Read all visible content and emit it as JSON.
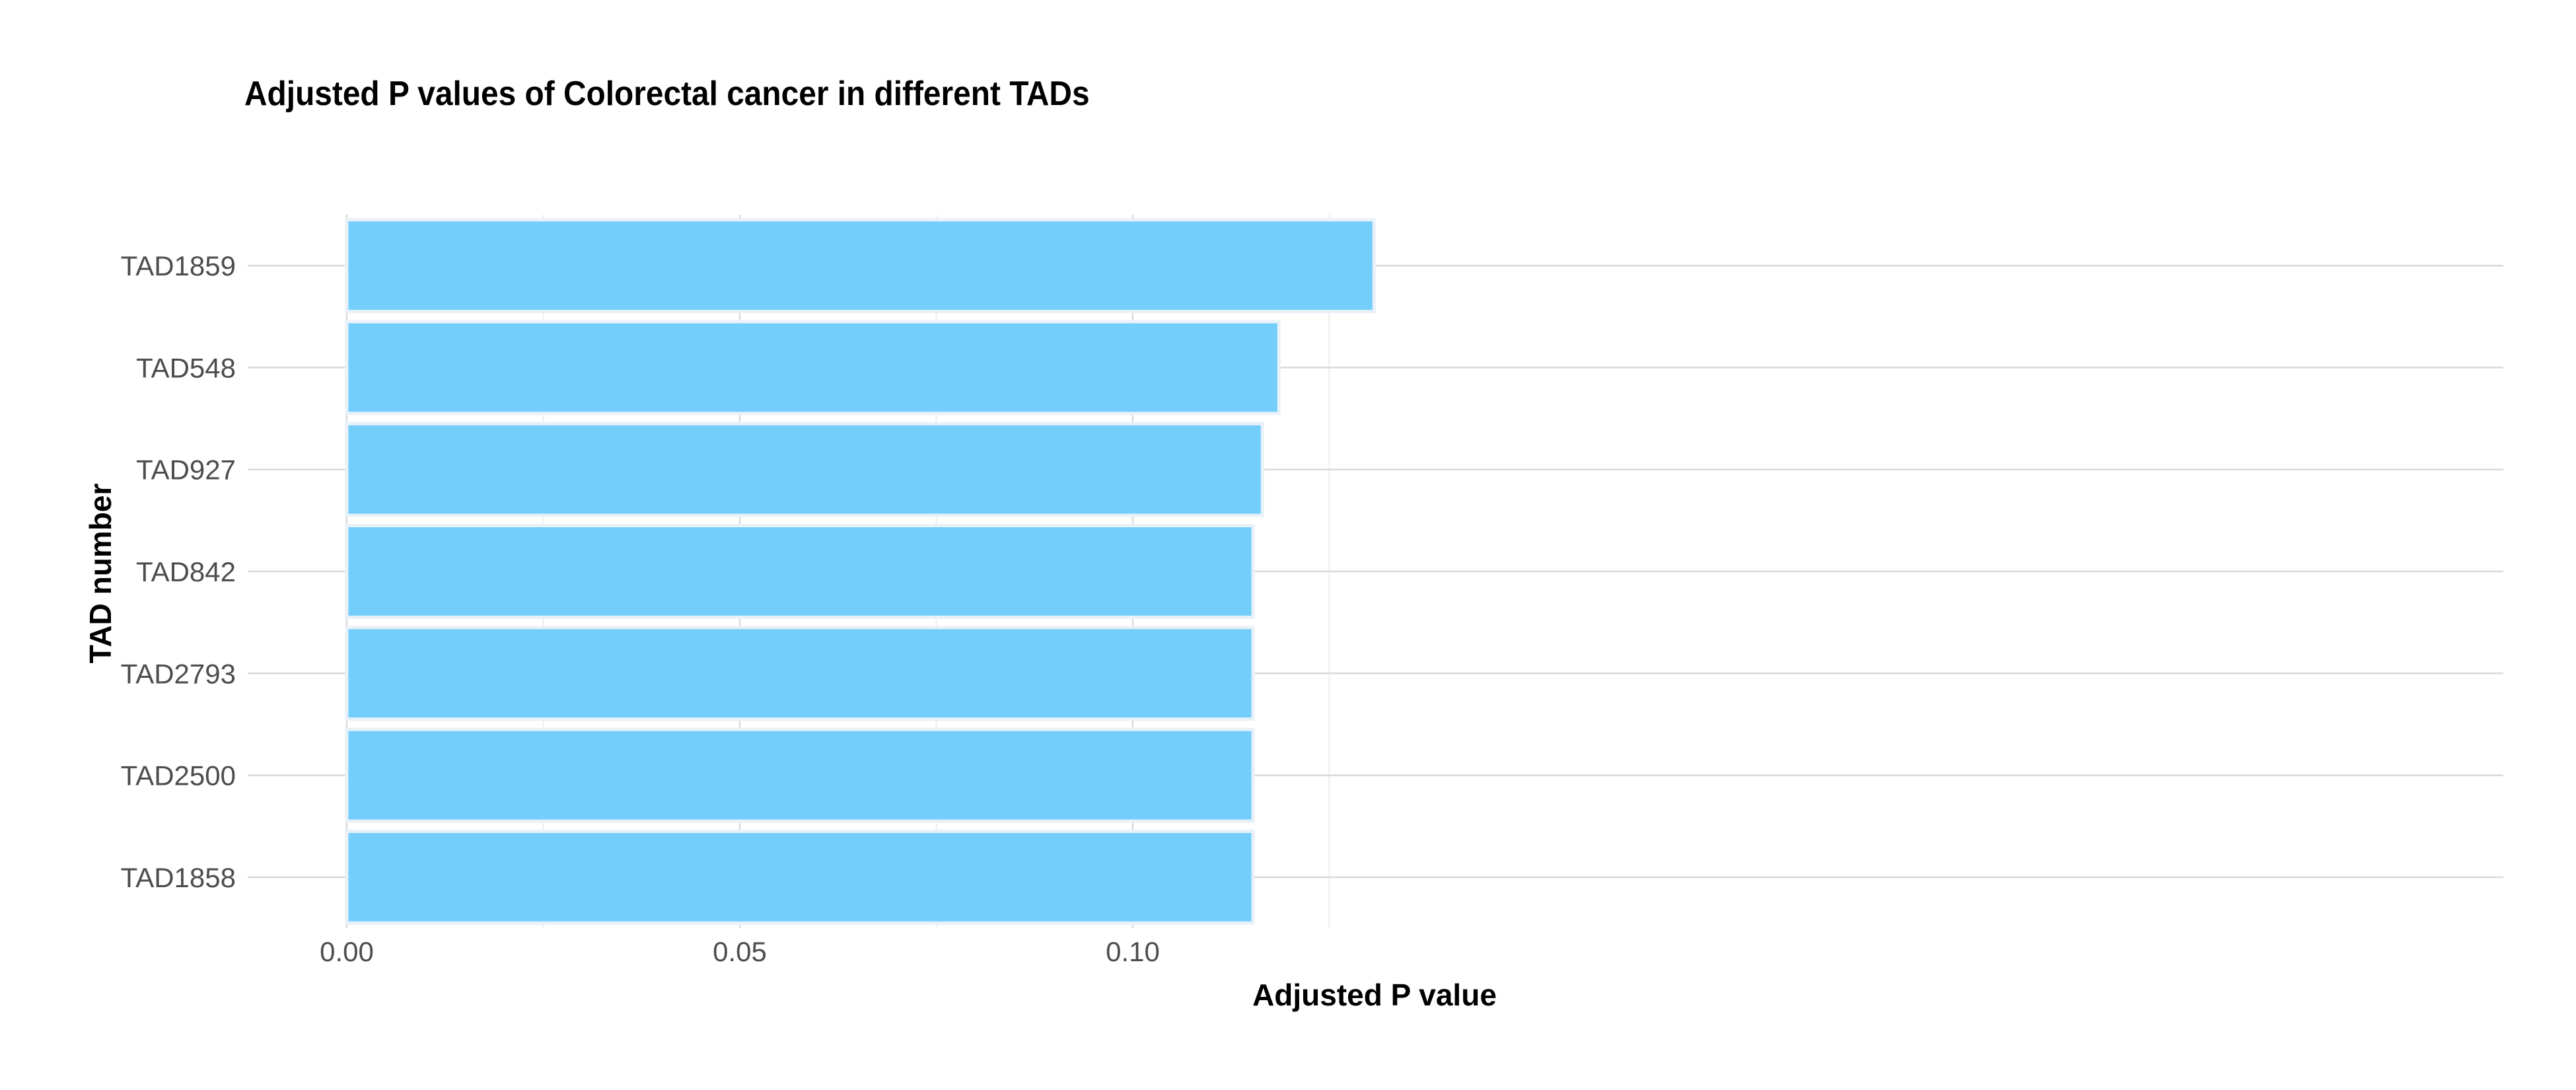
{
  "chart_data": {
    "type": "bar",
    "orientation": "horizontal",
    "title": "Adjusted P values of Colorectal cancer in different TADs",
    "xlabel": "Adjusted P value",
    "ylabel": "TAD number",
    "categories": [
      "TAD1859",
      "TAD548",
      "TAD927",
      "TAD842",
      "TAD2793",
      "TAD2500",
      "TAD1858"
    ],
    "values": [
      0.1307,
      0.1186,
      0.1165,
      0.1153,
      0.1153,
      0.1153,
      0.1153
    ],
    "xlim": [
      0,
      0.1375
    ],
    "xticks": [
      0.0,
      0.05,
      0.1
    ],
    "xtick_labels": [
      "0.00",
      "0.05",
      "0.10"
    ],
    "grid": true,
    "legend": "none",
    "bar_color": "#74CEFB",
    "bar_outline": "#E9F1F8",
    "grid_major_color": "#D9D9D9",
    "grid_minor_color": "#EDEDED"
  }
}
